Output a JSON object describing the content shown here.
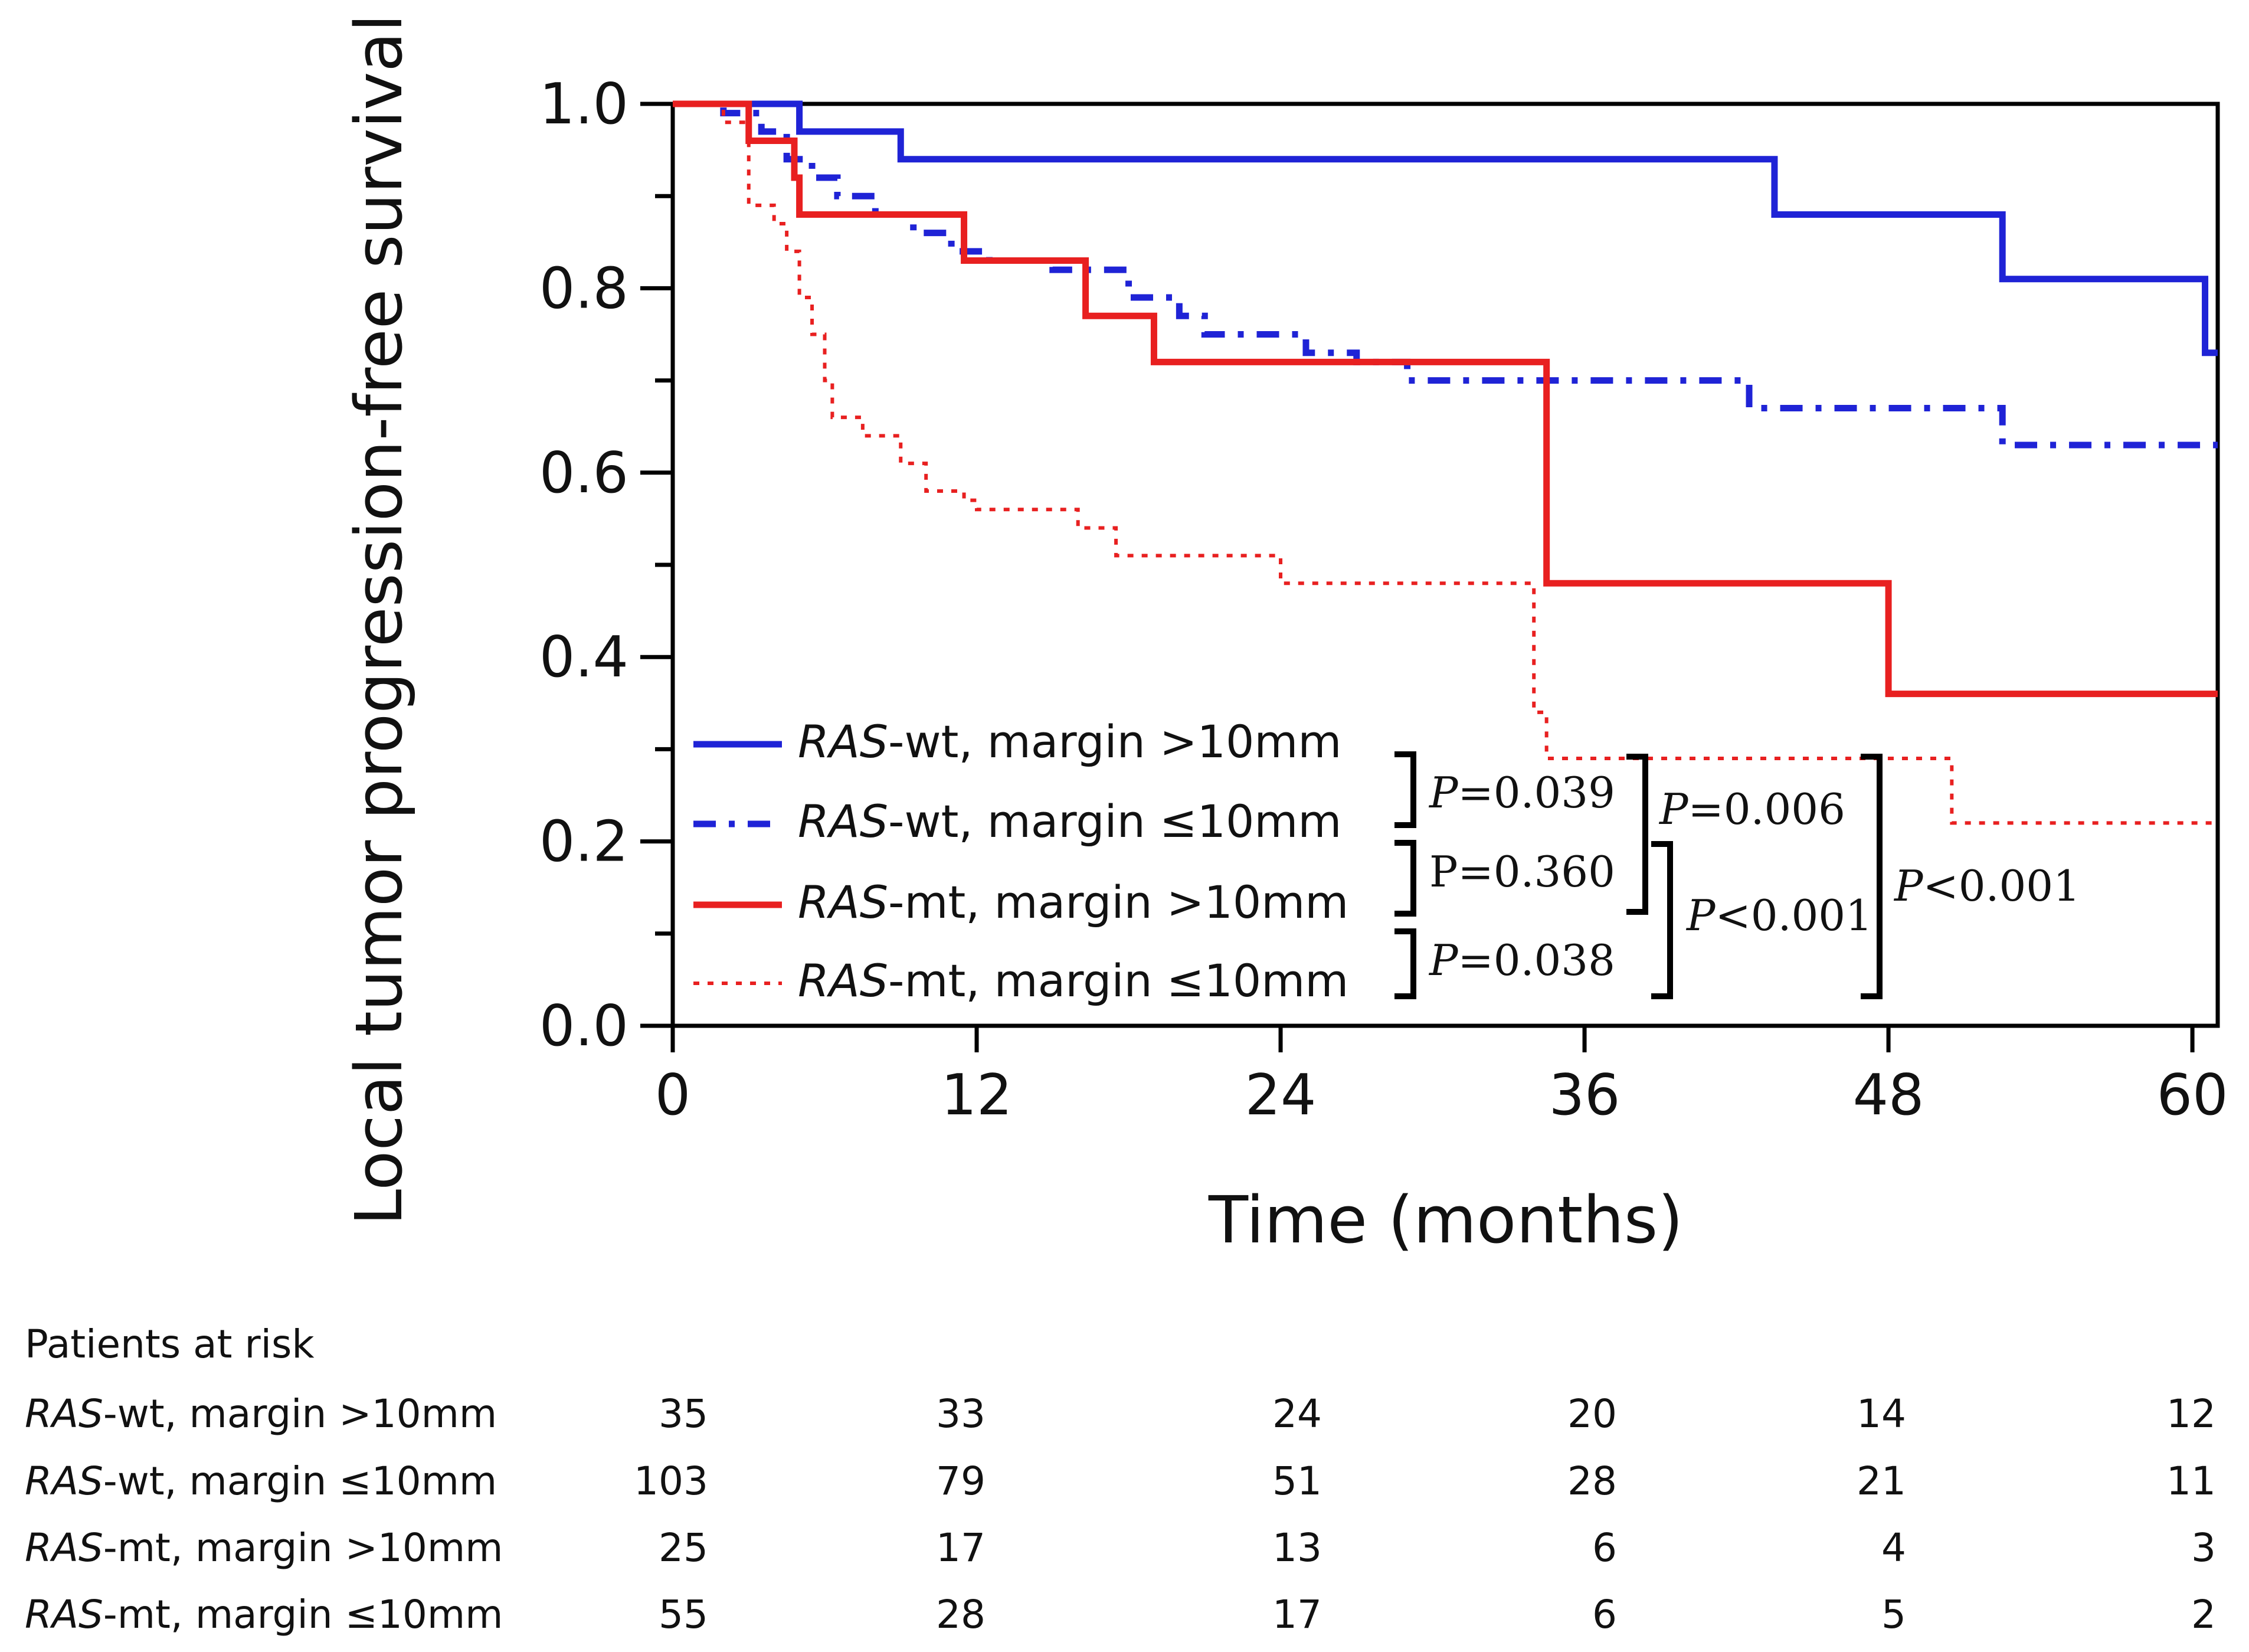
{
  "chart_data": {
    "type": "line",
    "subtype": "kaplan-meier",
    "ylabel": "Local tumor progression-free survival",
    "xlabel": "Time (months)",
    "xlim": [
      0,
      61
    ],
    "ylim": [
      0,
      1.0
    ],
    "xticks": [
      "0",
      "12",
      "24",
      "36",
      "48",
      "60"
    ],
    "yticks": [
      "0.0",
      "0.2",
      "0.4",
      "0.6",
      "0.8",
      "1.0"
    ],
    "series": [
      {
        "name_prefix": "RAS",
        "name_suffix": "-wt, margin >10mm",
        "color": "#1f23d6",
        "style": "solid",
        "steps": [
          [
            0,
            1.0
          ],
          [
            5,
            0.97
          ],
          [
            9,
            0.94
          ],
          [
            43.5,
            0.88
          ],
          [
            52.5,
            0.81
          ],
          [
            60.5,
            0.73
          ],
          [
            61,
            0.73
          ]
        ]
      },
      {
        "name_prefix": "RAS",
        "name_suffix": "-wt, margin ≤10mm",
        "color": "#1f23d6",
        "style": "dashdot",
        "steps": [
          [
            0,
            1.0
          ],
          [
            2,
            0.99
          ],
          [
            3.5,
            0.97
          ],
          [
            4.5,
            0.94
          ],
          [
            5.5,
            0.92
          ],
          [
            6.5,
            0.9
          ],
          [
            8,
            0.88
          ],
          [
            9.5,
            0.86
          ],
          [
            11,
            0.84
          ],
          [
            12.5,
            0.83
          ],
          [
            15,
            0.82
          ],
          [
            18,
            0.79
          ],
          [
            20,
            0.77
          ],
          [
            21,
            0.75
          ],
          [
            25,
            0.73
          ],
          [
            27,
            0.72
          ],
          [
            29,
            0.7
          ],
          [
            42.5,
            0.67
          ],
          [
            52.5,
            0.63
          ],
          [
            61,
            0.63
          ]
        ]
      },
      {
        "name_prefix": "RAS",
        "name_suffix": "-mt, margin >10mm",
        "color": "#e82020",
        "style": "solid",
        "steps": [
          [
            0,
            1.0
          ],
          [
            3,
            0.96
          ],
          [
            4.8,
            0.92
          ],
          [
            5,
            0.88
          ],
          [
            11.5,
            0.83
          ],
          [
            16.3,
            0.77
          ],
          [
            19,
            0.72
          ],
          [
            34.5,
            0.48
          ],
          [
            48,
            0.36
          ],
          [
            61,
            0.36
          ]
        ]
      },
      {
        "name_prefix": "RAS",
        "name_suffix": "-mt, margin ≤10mm",
        "color": "#e82020",
        "style": "dotted",
        "steps": [
          [
            0,
            1.0
          ],
          [
            2,
            0.98
          ],
          [
            3,
            0.89
          ],
          [
            4,
            0.87
          ],
          [
            4.5,
            0.84
          ],
          [
            5,
            0.79
          ],
          [
            5.5,
            0.75
          ],
          [
            6,
            0.7
          ],
          [
            6.3,
            0.66
          ],
          [
            7.5,
            0.64
          ],
          [
            9,
            0.61
          ],
          [
            10,
            0.58
          ],
          [
            11.5,
            0.57
          ],
          [
            12,
            0.56
          ],
          [
            16,
            0.54
          ],
          [
            17.5,
            0.51
          ],
          [
            24,
            0.48
          ],
          [
            34,
            0.34
          ],
          [
            34.5,
            0.29
          ],
          [
            50.5,
            0.22
          ],
          [
            61,
            0.22
          ]
        ]
      }
    ],
    "comparisons": [
      {
        "label_p": "P",
        "label_rest": "=0.039",
        "groups": [
          0,
          1
        ]
      },
      {
        "label_p": "P",
        "label_rest": "=0.360",
        "groups": [
          1,
          2
        ],
        "plain": true
      },
      {
        "label_p": "P",
        "label_rest": "=0.038",
        "groups": [
          2,
          3
        ]
      },
      {
        "label_p": "P",
        "label_rest": "=0.006",
        "groups": [
          0,
          2
        ]
      },
      {
        "label_p": "P",
        "label_rest": "<0.001",
        "groups": [
          1,
          3
        ]
      },
      {
        "label_p": "P",
        "label_rest": "<0.001",
        "groups": [
          0,
          3
        ]
      }
    ],
    "risk_table": {
      "title": "Patients at risk",
      "times": [
        0,
        12,
        24,
        36,
        48,
        60
      ],
      "rows": [
        {
          "prefix": "RAS",
          "suffix": "-wt, margin >10mm",
          "values": [
            "35",
            "33",
            "24",
            "20",
            "14",
            "12"
          ]
        },
        {
          "prefix": "RAS",
          "suffix": "-wt, margin ≤10mm",
          "values": [
            "103",
            "79",
            "51",
            "28",
            "21",
            "11"
          ]
        },
        {
          "prefix": "RAS",
          "suffix": "-mt, margin >10mm",
          "values": [
            "25",
            "17",
            "13",
            "6",
            "4",
            "3"
          ]
        },
        {
          "prefix": "RAS",
          "suffix": "-mt, margin ≤10mm",
          "values": [
            "55",
            "28",
            "17",
            "6",
            "5",
            "2"
          ]
        }
      ]
    }
  }
}
